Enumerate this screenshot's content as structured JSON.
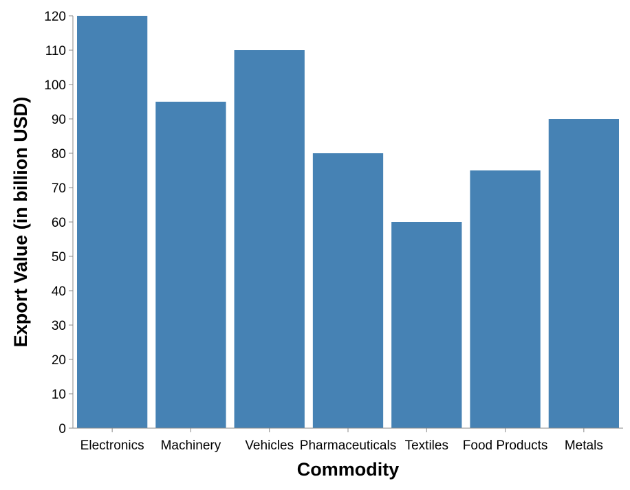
{
  "chart_data": {
    "type": "bar",
    "title": "",
    "xlabel": "Commodity",
    "ylabel": "Export Value (in billion USD)",
    "categories": [
      "Electronics",
      "Machinery",
      "Vehicles",
      "Pharmaceuticals",
      "Textiles",
      "Food Products",
      "Metals"
    ],
    "values": [
      120,
      95,
      110,
      80,
      60,
      75,
      90
    ],
    "ylim": [
      0,
      120
    ],
    "yticks": [
      0,
      10,
      20,
      30,
      40,
      50,
      60,
      70,
      80,
      90,
      100,
      110,
      120
    ],
    "grid": false,
    "bar_color": "#4682b4",
    "axis_color": "#888888"
  }
}
